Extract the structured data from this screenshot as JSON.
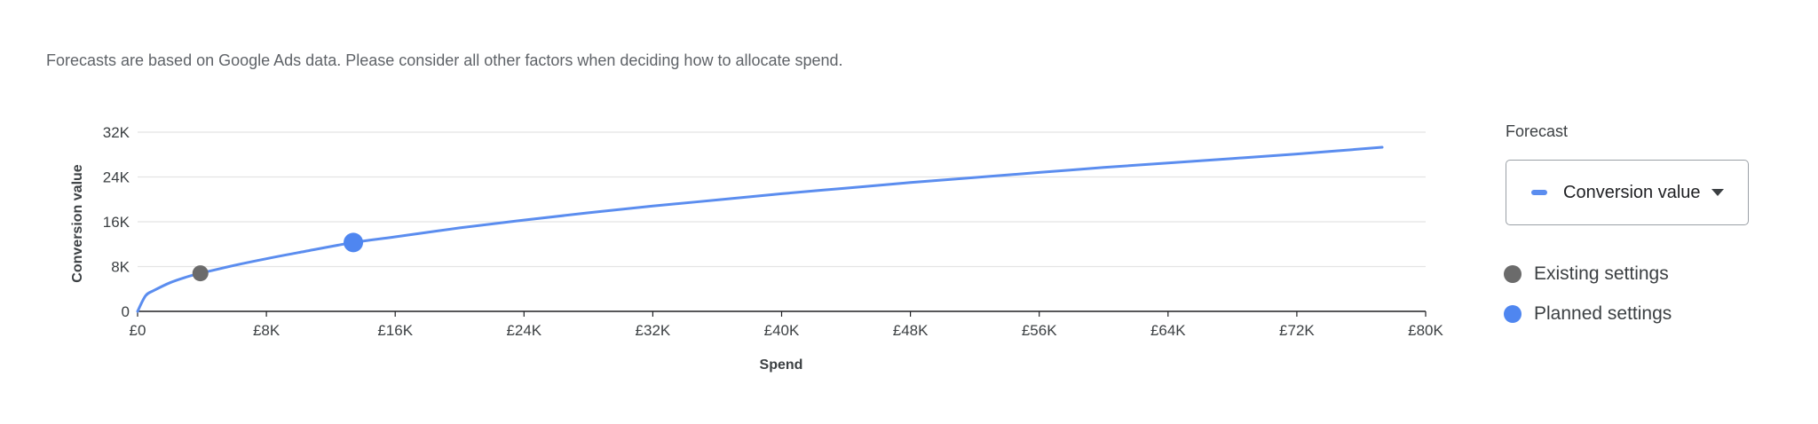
{
  "disclaimer": "Forecasts are based on Google Ads data. Please consider all other factors when deciding how to allocate spend.",
  "forecast_panel": {
    "title": "Forecast",
    "selected_metric": "Conversion value"
  },
  "legend": {
    "existing_label": "Existing settings",
    "planned_label": "Planned settings"
  },
  "colors": {
    "line": "#5b8def",
    "existing": "#6b6b6b",
    "planned": "#4f86f0",
    "grid": "#e4e4e4",
    "axis": "#202124"
  },
  "chart_data": {
    "type": "line",
    "title": "",
    "xlabel": "Spend",
    "ylabel": "Conversion value",
    "xlim": [
      0,
      80000
    ],
    "ylim": [
      0,
      32000
    ],
    "x_ticks": [
      0,
      8000,
      16000,
      24000,
      32000,
      40000,
      48000,
      56000,
      64000,
      72000,
      80000
    ],
    "x_tick_labels": [
      "£0",
      "£8K",
      "£16K",
      "£24K",
      "£32K",
      "£40K",
      "£48K",
      "£56K",
      "£64K",
      "£72K",
      "£80K"
    ],
    "y_ticks": [
      0,
      8000,
      16000,
      24000,
      32000
    ],
    "y_tick_labels": [
      "0",
      "8K",
      "16K",
      "24K",
      "32K"
    ],
    "grid": true,
    "legend_position": "right",
    "series": [
      {
        "name": "Conversion value",
        "x": [
          0,
          500,
          1000,
          2000,
          3000,
          3900,
          6000,
          8000,
          10000,
          13400,
          16000,
          20000,
          24000,
          28000,
          32000,
          36000,
          40000,
          44000,
          48000,
          52000,
          56000,
          60000,
          64000,
          68000,
          72000,
          77300
        ],
        "y": [
          0,
          2800,
          3700,
          5100,
          6100,
          6800,
          8200,
          9400,
          10500,
          12300,
          13300,
          14900,
          16300,
          17600,
          18800,
          19900,
          21000,
          22000,
          23000,
          23900,
          24800,
          25700,
          26500,
          27300,
          28100,
          29300
        ]
      }
    ],
    "points": [
      {
        "name": "Existing settings",
        "x": 3900,
        "y": 6800
      },
      {
        "name": "Planned settings",
        "x": 13400,
        "y": 12300
      }
    ]
  }
}
